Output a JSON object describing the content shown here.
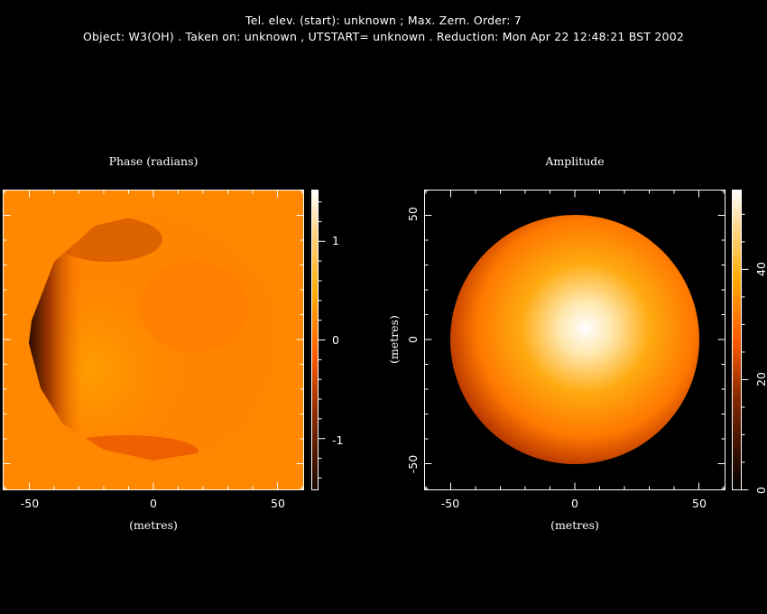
{
  "header": {
    "line1": "Tel. elev. (start): unknown ;  Max. Zern. Order: 7",
    "line2": "Object: W3(OH) . Taken on: unknown , UTSTART= unknown . Reduction:  Mon Apr 22 12:48:21 BST 2002"
  },
  "chart_data": [
    {
      "type": "heatmap",
      "title": "Phase (radians)",
      "xlabel": "(metres)",
      "ylabel": "",
      "xlim": [
        -61,
        61
      ],
      "ylim": [
        -61,
        61
      ],
      "xticks": [
        "-50",
        "0",
        "50"
      ],
      "disk_radius": 50,
      "colorbar": {
        "range": [
          -1.52,
          1.52
        ],
        "ticks": [
          "1",
          "0",
          "-1"
        ],
        "tick_values": [
          1,
          0,
          -1
        ]
      },
      "colors": {
        "background": "#ff8800",
        "low": "#1a0800",
        "mid": "#ff6a00",
        "high": "#ffffff"
      }
    },
    {
      "type": "heatmap",
      "title": "Amplitude",
      "xlabel": "(metres)",
      "ylabel": "(metres)",
      "xlim": [
        -61,
        61
      ],
      "ylim": [
        -61,
        61
      ],
      "xticks": [
        "-50",
        "0",
        "50"
      ],
      "yticks": [
        "50",
        "0",
        "-50"
      ],
      "disk_radius": 50,
      "peak": 54,
      "colorbar": {
        "range": [
          0,
          54.4
        ],
        "ticks": [
          "40",
          "20",
          "0"
        ],
        "tick_values": [
          40,
          20,
          0
        ]
      },
      "colors": {
        "background": "#000000",
        "edge": "#c03a00",
        "mid": "#ff8c00",
        "high": "#ffffff"
      }
    }
  ]
}
